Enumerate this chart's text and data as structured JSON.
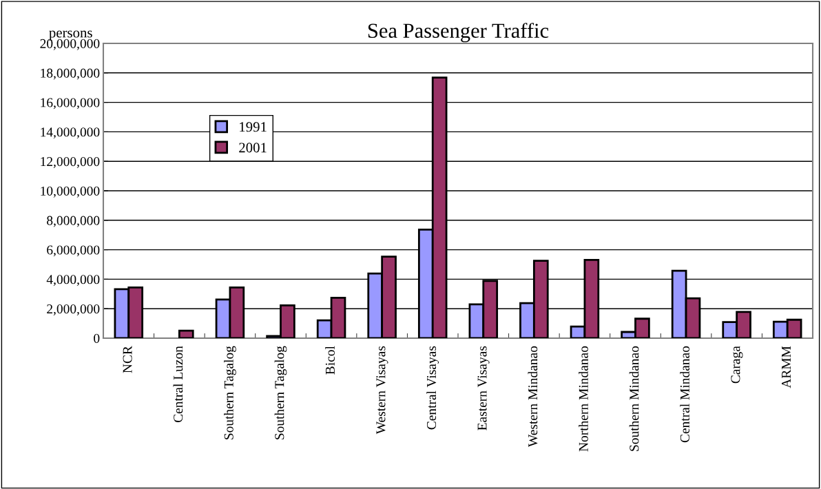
{
  "chart_data": {
    "type": "bar",
    "title": "Sea Passenger Traffic",
    "ylabel": "persons",
    "categories": [
      "NCR",
      "Central Luzon",
      "Southern Tagalog",
      "Southern Tagalog",
      "Bicol",
      "Western Visayas",
      "Central Visayas",
      "Eastern Visayas",
      "Western Mindanao",
      "Northern Mindanao",
      "Southern Mindanao",
      "Central Mindanao",
      "Caraga",
      "ARMM"
    ],
    "series": [
      {
        "name": "1991",
        "color": "#9999ff",
        "values": [
          3320000,
          null,
          2620000,
          150000,
          1210000,
          4390000,
          7370000,
          2300000,
          2380000,
          790000,
          420000,
          4570000,
          1090000,
          1120000
        ]
      },
      {
        "name": "2001",
        "color": "#993366",
        "values": [
          3440000,
          510000,
          3440000,
          2230000,
          2740000,
          5530000,
          17680000,
          3890000,
          5250000,
          5310000,
          1320000,
          2700000,
          1780000,
          1250000
        ]
      }
    ],
    "ylim": [
      0,
      20000000
    ],
    "yticks": [
      0,
      {
        "value": 2000000,
        "label": "2,000,000"
      },
      {
        "value": 4000000,
        "label": "4,000,000"
      },
      {
        "value": 6000000,
        "label": "6,000,000"
      },
      {
        "value": 8000000,
        "label": "8,000,000"
      },
      {
        "value": 10000000,
        "label": "10,000,000"
      },
      {
        "value": 12000000,
        "label": "12,000,000"
      },
      {
        "value": 14000000,
        "label": "14,000,000"
      },
      {
        "value": 16000000,
        "label": "16,000,000"
      },
      {
        "value": 18000000,
        "label": "18,000,000"
      },
      {
        "value": 20000000,
        "label": "20,000,000"
      }
    ],
    "grid": "y",
    "legend": "top left"
  }
}
